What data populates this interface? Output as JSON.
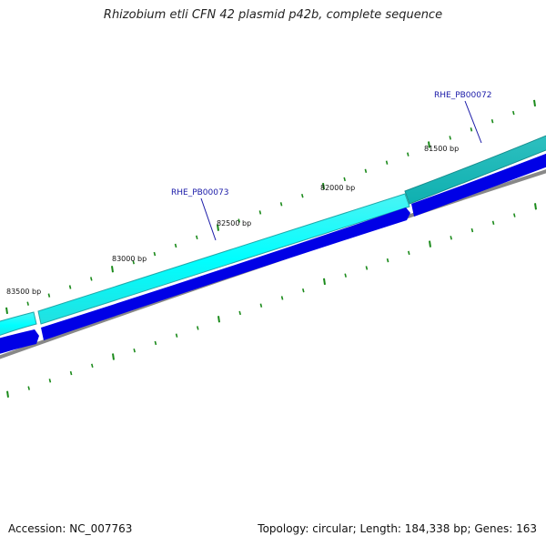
{
  "title": "Rhizobium etli CFN 42 plasmid p42b, complete sequence",
  "footer": {
    "accession": "Accession: NC_007763",
    "summary": "Topology: circular; Length: 184,338 bp; Genes: 163"
  },
  "positions": {
    "p81500": "81500 bp",
    "p82000": "82000 bp",
    "p82500": "82500 bp",
    "p83000": "83000 bp",
    "p83500": "83500 bp"
  },
  "genes": {
    "g72": "RHE_PB00072",
    "g73": "RHE_PB00073"
  },
  "colors": {
    "outer_band": "#00ffff",
    "outer_band_alt": "#00c8c8",
    "gene_arrow": "#0000e6",
    "backbone": "#808080",
    "tick": "#1a8a1a"
  }
}
